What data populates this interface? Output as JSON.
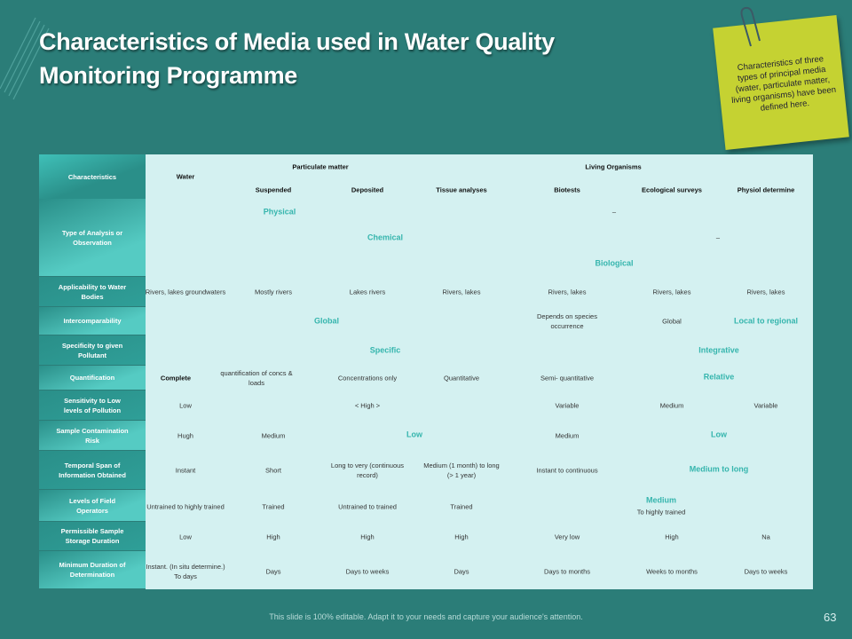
{
  "header": {
    "title": "Characteristics of Media used in Water Quality Monitoring Programme"
  },
  "note": "Characteristics of three types of principal media (water, particulate matter, living organisms) have been defined here.",
  "table": {
    "header": {
      "row_label": "Characteristics",
      "water": "Water",
      "groups": [
        "Particulate matter",
        "Living Organisms"
      ],
      "columns": [
        "Suspended",
        "Deposited",
        "Tissue analyses",
        "Biotests",
        "Ecological surveys",
        "Physiol determine"
      ]
    },
    "rows": [
      {
        "label": "Type of Analysis or Observation",
        "cells": [
          "Physical",
          "–",
          "Chemical",
          "–",
          "Biological"
        ]
      },
      {
        "label": "Applicability to Water Bodies",
        "cells": [
          "Rivers, lakes groundwaters",
          "Mostly rivers",
          "Lakes rivers",
          "Rivers, lakes",
          "Rivers, lakes",
          "Rivers, lakes",
          "Rivers, lakes"
        ]
      },
      {
        "label": "Intercomparability",
        "cells": [
          "Global",
          "Depends on species occurrence",
          "Global",
          "Local to regional"
        ]
      },
      {
        "label": "Specificity to given Pollutant",
        "cells": [
          "Specific",
          "Integrative"
        ]
      },
      {
        "label": "Quantification",
        "cells": [
          "Complete",
          "quantification of concs & loads",
          "Concentrations only",
          "Quantitative",
          "Semi- quantitative",
          "Relative"
        ]
      },
      {
        "label": "Sensitivity to Low levels of Pollution",
        "cells": [
          "Low",
          "< High >",
          "Variable",
          "Medium",
          "Variable"
        ]
      },
      {
        "label": "Sample Contamination Risk",
        "cells": [
          "Hugh",
          "Medium",
          "Low",
          "Medium",
          "Low"
        ]
      },
      {
        "label": "Temporal Span of Information Obtained",
        "cells": [
          "Instant",
          "Short",
          "Long to very (continuous record)",
          "Medium (1 month) to long (> 1 year)",
          "Instant to continuous",
          "Medium to long"
        ]
      },
      {
        "label": "Levels of Field Operators",
        "cells": [
          "Untrained to highly trained",
          "Trained",
          "Untrained to trained",
          "Trained",
          "Medium",
          "To highly trained"
        ]
      },
      {
        "label": "Permissible Sample Storage Duration",
        "cells": [
          "Low",
          "High",
          "High",
          "High",
          "Very low",
          "High",
          "Na"
        ]
      },
      {
        "label": "Minimum Duration of Determination",
        "cells": [
          "Instant. (In situ determine.) To days",
          "Days",
          "Days to weeks",
          "Days",
          "Days to months",
          "Weeks to months",
          "Days to weeks"
        ]
      }
    ]
  },
  "footer": "This slide is 100% editable. Adapt it to your needs and capture your audience's attention.",
  "page_number": "63"
}
